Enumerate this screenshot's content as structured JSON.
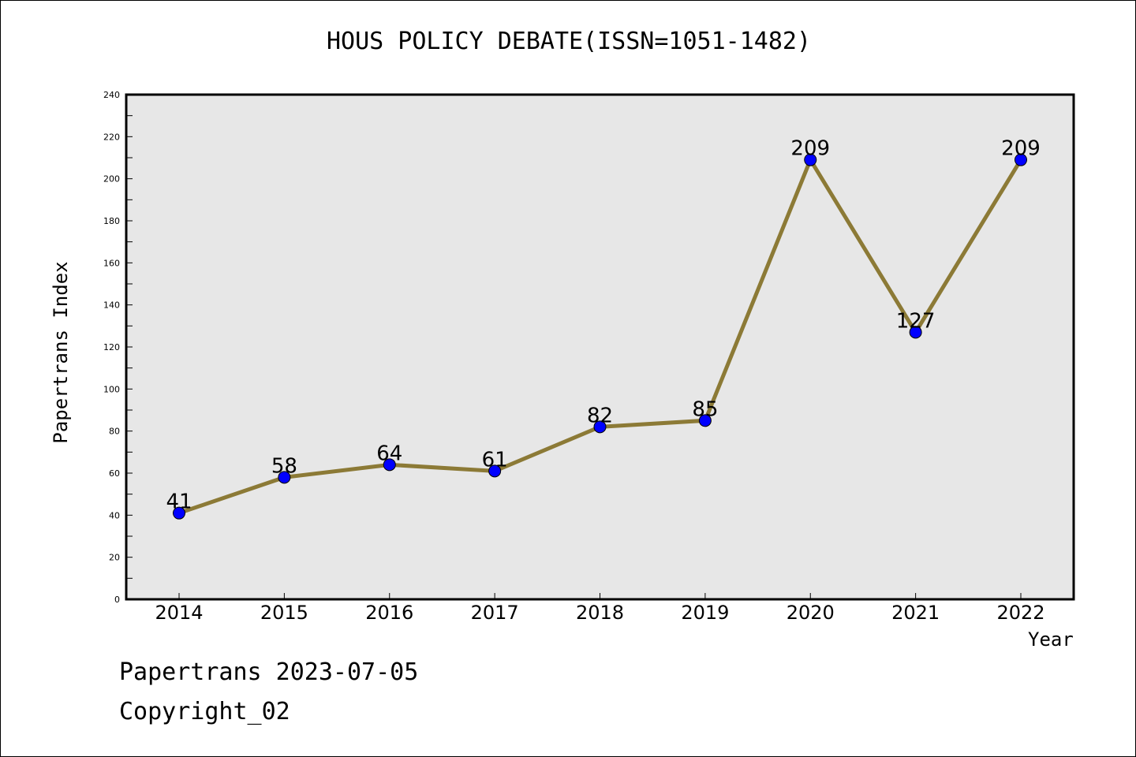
{
  "chart_data": {
    "type": "line",
    "title": "HOUS POLICY DEBATE(ISSN=1051-1482)",
    "xlabel": "Year",
    "ylabel": "Papertrans Index",
    "categories": [
      "2014",
      "2015",
      "2016",
      "2017",
      "2018",
      "2019",
      "2020",
      "2021",
      "2022"
    ],
    "series": [
      {
        "values": [
          41,
          58,
          64,
          61,
          82,
          85,
          209,
          127,
          209
        ]
      }
    ],
    "yticks": [
      "0",
      "20",
      "40",
      "60",
      "80",
      "100",
      "120",
      "140",
      "160",
      "180",
      "200",
      "220",
      "240"
    ],
    "ylim": [
      0,
      240
    ],
    "grid": false,
    "data_labels": true,
    "colors": {
      "line": "#8c7a36",
      "marker": "#0000ff",
      "plot_background": "#e7e7e7"
    }
  },
  "footer": {
    "line1": "Papertrans 2023-07-05",
    "line2": "Copyright_02"
  }
}
